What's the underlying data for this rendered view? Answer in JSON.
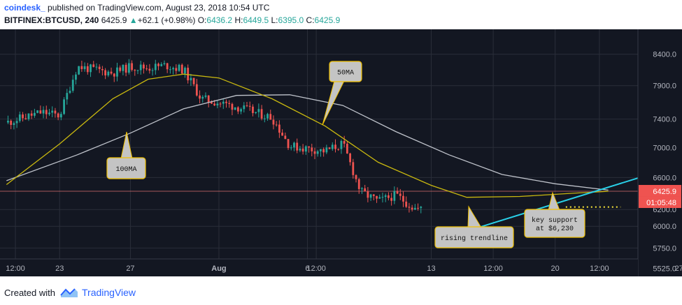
{
  "header": {
    "author": "coindesk_",
    "published": "published on TradingView.com, August 23, 2018 10:54 UTC",
    "symbol": "BITFINEX:BTCUSD, 240",
    "last": "6425.9",
    "arrow": "▲",
    "change": "+62.1 (+0.98%)",
    "o_label": "O:",
    "o_value": "6436.2",
    "h_label": "H:",
    "h_value": "6449.5",
    "l_label": "L:",
    "l_value": "6395.0",
    "c_label": "C:",
    "c_value": "6425.9"
  },
  "footer": {
    "created_with": "Created with",
    "brand": "TradingView"
  },
  "colors": {
    "background": "#131722",
    "grid": "#2a2e39",
    "bull": "#26a69a",
    "bear": "#ef5350",
    "ma50": "#c9b80f",
    "ma100": "#c0c4cc",
    "trendline": "#29d0e8",
    "support": "#ffeb3b",
    "price_line": "#e57373"
  },
  "chart_data": {
    "type": "candlestick",
    "interval": "240",
    "symbol": "BITFINEX:BTCUSD",
    "y_ticks": [
      5525.0,
      5750.0,
      6000.0,
      6200.0,
      6600.0,
      7000.0,
      7400.0,
      7900.0,
      8400.0
    ],
    "ylim": [
      5440,
      8820
    ],
    "y_scale": "log",
    "x_ticks": [
      "12:00",
      "23",
      "27",
      "Aug",
      "6",
      "12:00",
      "13",
      "12:00",
      "20",
      "12:00",
      "27"
    ],
    "last_price_label": "6425.9",
    "countdown_label": "01:05:48",
    "ma50_label": "50MA",
    "ma100_label": "100MA",
    "callouts": {
      "trendline": "rising trendline",
      "support_line1": "key support",
      "support_line2": "at $6,230"
    },
    "anchors": [
      {
        "date": "2018-07-20",
        "price": 7350
      },
      {
        "date": "2018-07-22",
        "price": 7500
      },
      {
        "date": "2018-07-23",
        "price": 7450
      },
      {
        "date": "2018-07-24",
        "price": 8200
      },
      {
        "date": "2018-07-25",
        "price": 8150
      },
      {
        "date": "2018-07-26",
        "price": 8100
      },
      {
        "date": "2018-07-27",
        "price": 8200
      },
      {
        "date": "2018-07-28",
        "price": 8180
      },
      {
        "date": "2018-07-29",
        "price": 8220
      },
      {
        "date": "2018-07-30",
        "price": 8150
      },
      {
        "date": "2018-07-31",
        "price": 7700
      },
      {
        "date": "2018-08-02",
        "price": 7580
      },
      {
        "date": "2018-08-04",
        "price": 7420
      },
      {
        "date": "2018-08-05",
        "price": 7020
      },
      {
        "date": "2018-08-07",
        "price": 6950
      },
      {
        "date": "2018-08-08",
        "price": 7050
      },
      {
        "date": "2018-08-09",
        "price": 6420
      },
      {
        "date": "2018-08-10",
        "price": 6300
      },
      {
        "date": "2018-08-11",
        "price": 6380
      },
      {
        "date": "2018-08-12",
        "price": 6220
      },
      {
        "date": "2018-08-13",
        "price": 6180
      },
      {
        "date": "2018-08-14",
        "price": 6000
      },
      {
        "date": "2018-08-15",
        "price": 6330
      },
      {
        "date": "2018-08-16",
        "price": 6450
      },
      {
        "date": "2018-08-17",
        "price": 6480
      },
      {
        "date": "2018-08-18",
        "price": 6420
      },
      {
        "date": "2018-08-19",
        "price": 6450
      },
      {
        "date": "2018-08-20",
        "price": 6500
      },
      {
        "date": "2018-08-21",
        "price": 6470
      },
      {
        "date": "2018-08-22",
        "price": 6460
      },
      {
        "date": "2018-08-23",
        "price": 6430
      }
    ],
    "ma50_points": [
      {
        "date": "2018-07-20",
        "price": 6510
      },
      {
        "date": "2018-07-23",
        "price": 7050
      },
      {
        "date": "2018-07-26",
        "price": 7700
      },
      {
        "date": "2018-07-28",
        "price": 8000
      },
      {
        "date": "2018-07-30",
        "price": 8080
      },
      {
        "date": "2018-08-01",
        "price": 8020
      },
      {
        "date": "2018-08-04",
        "price": 7700
      },
      {
        "date": "2018-08-07",
        "price": 7300
      },
      {
        "date": "2018-08-10",
        "price": 6800
      },
      {
        "date": "2018-08-13",
        "price": 6500
      },
      {
        "date": "2018-08-15",
        "price": 6350
      },
      {
        "date": "2018-08-18",
        "price": 6360
      },
      {
        "date": "2018-08-21",
        "price": 6400
      },
      {
        "date": "2018-08-23",
        "price": 6425
      }
    ],
    "ma100_points": [
      {
        "date": "2018-07-20",
        "price": 6560
      },
      {
        "date": "2018-07-24",
        "price": 6900
      },
      {
        "date": "2018-07-27",
        "price": 7200
      },
      {
        "date": "2018-07-30",
        "price": 7550
      },
      {
        "date": "2018-08-02",
        "price": 7750
      },
      {
        "date": "2018-08-05",
        "price": 7760
      },
      {
        "date": "2018-08-08",
        "price": 7600
      },
      {
        "date": "2018-08-11",
        "price": 7220
      },
      {
        "date": "2018-08-14",
        "price": 6900
      },
      {
        "date": "2018-08-17",
        "price": 6640
      },
      {
        "date": "2018-08-20",
        "price": 6520
      },
      {
        "date": "2018-08-23",
        "price": 6440
      }
    ],
    "trendline": [
      {
        "date": "2018-08-14",
        "price": 5880
      },
      {
        "date": "2018-08-27",
        "price": 6760
      }
    ],
    "support_level": 6230
  }
}
